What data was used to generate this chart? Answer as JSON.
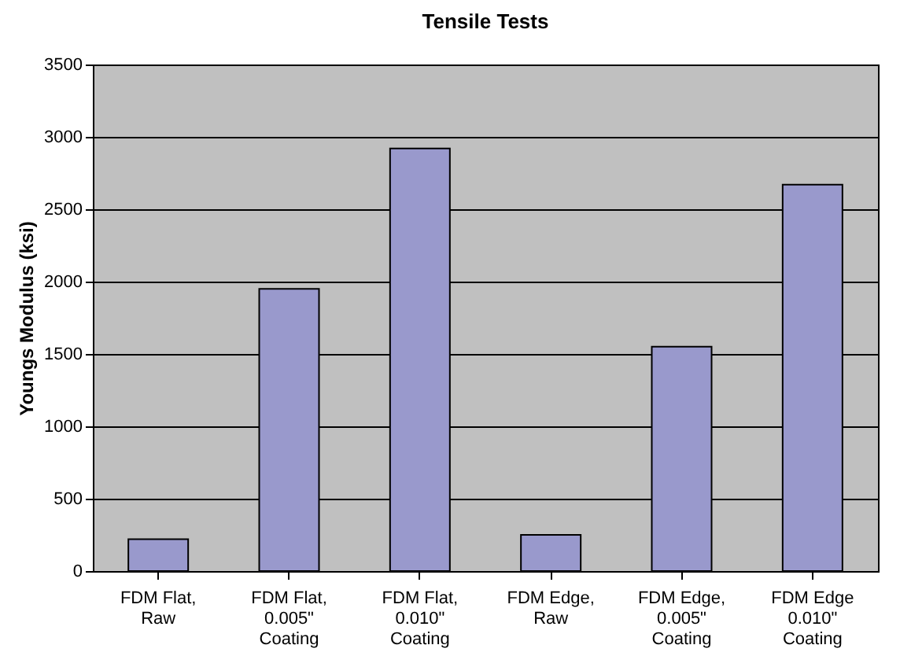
{
  "chart_data": {
    "type": "bar",
    "title": "Tensile Tests",
    "ylabel": "Youngs Modulus (ksi)",
    "categories": [
      "FDM Flat, Raw",
      "FDM Flat, 0.005\" Coating",
      "FDM Flat, 0.010\" Coating",
      "FDM Edge, Raw",
      "FDM Edge, 0.005\" Coating",
      "FDM Edge 0.010\" Coating"
    ],
    "values": [
      220,
      1950,
      2920,
      250,
      1550,
      2670
    ],
    "color": "#9999cc",
    "ylim": [
      0,
      3500
    ],
    "yticks": [
      0,
      500,
      1000,
      1500,
      2000,
      2500,
      3000,
      3500
    ],
    "grid": "y"
  }
}
